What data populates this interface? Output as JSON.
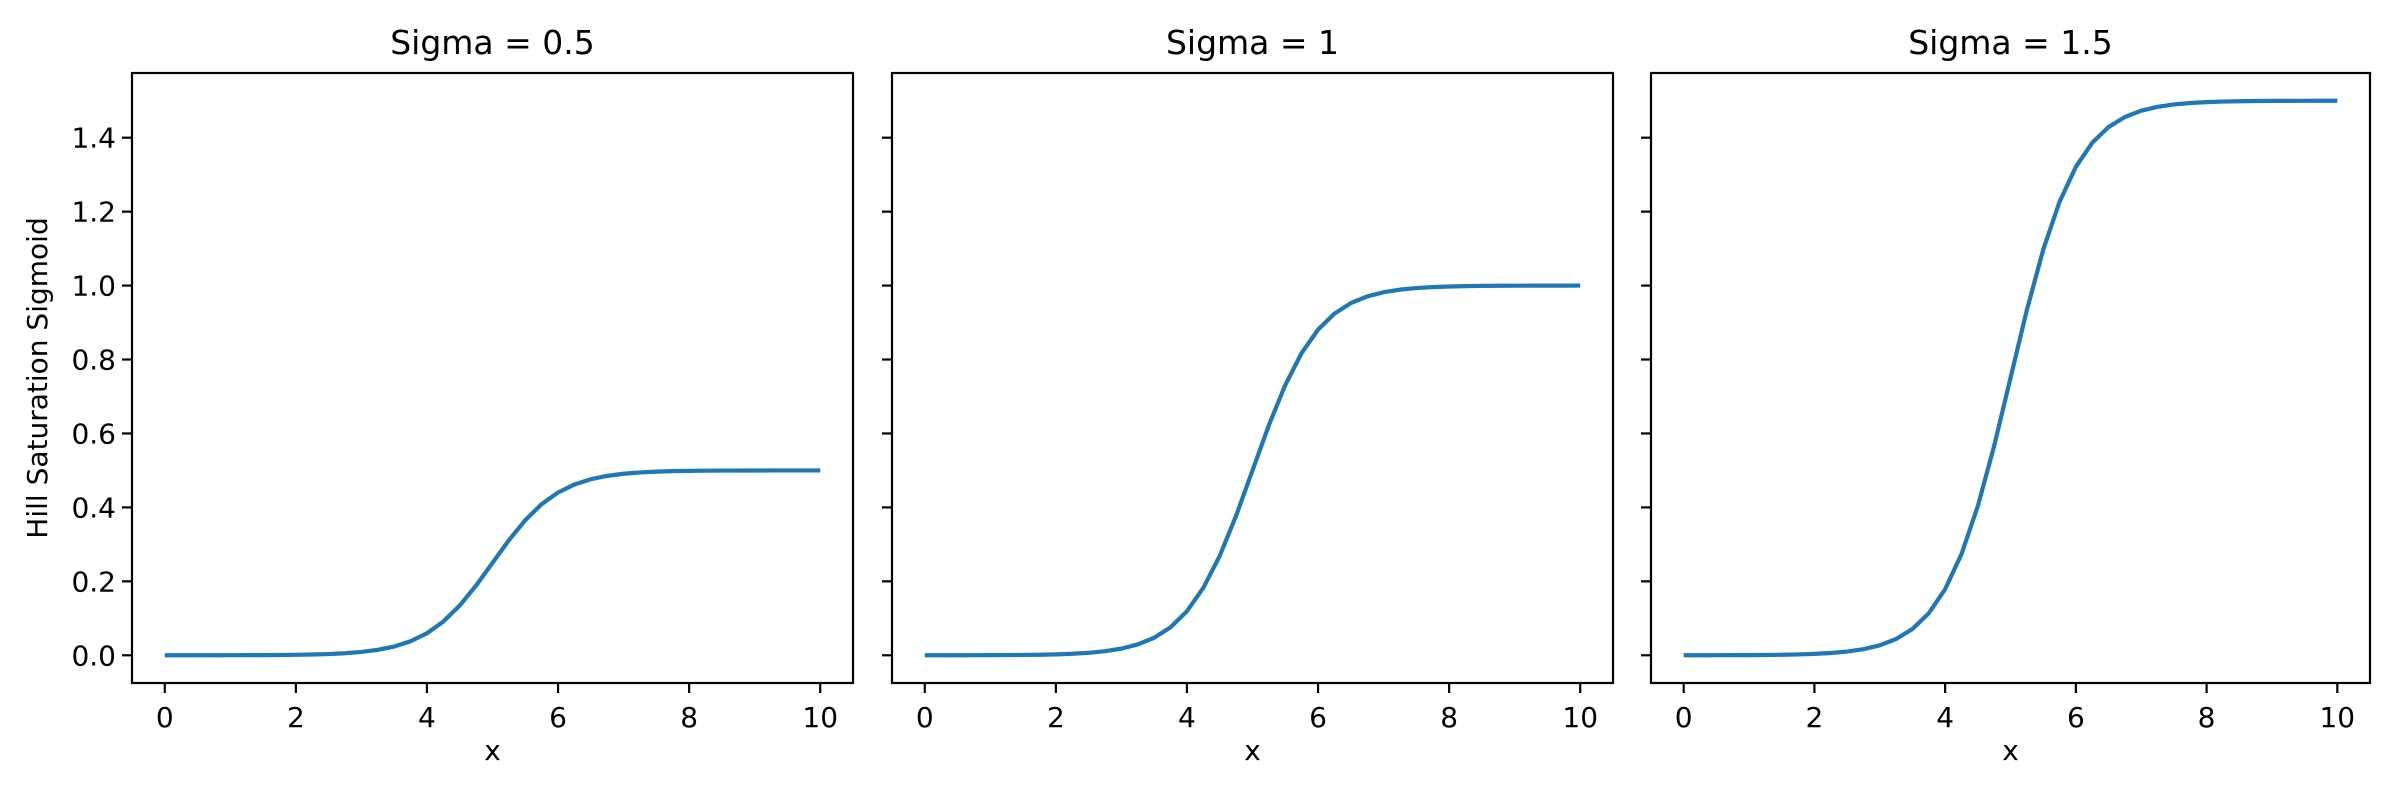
{
  "figure": {
    "background": "#ffffff",
    "text_color": "#000000",
    "spine_color": "#000000"
  },
  "chart_data": [
    {
      "type": "line",
      "title": "Sigma = 0.5",
      "xlabel": "x",
      "ylabel": "Hill Saturation Sigmoid",
      "sigma": 0.5,
      "line_color": "#1f77b4",
      "xlim": [
        -0.5,
        10.5
      ],
      "ylim": [
        -0.075,
        1.575
      ],
      "xticks": [
        0,
        2,
        4,
        6,
        8,
        10
      ],
      "xtick_labels": [
        "0",
        "2",
        "4",
        "6",
        "8",
        "10"
      ],
      "yticks": [
        0,
        0.2,
        0.4,
        0.6,
        0.8,
        1.0,
        1.2,
        1.4
      ],
      "ytick_labels": [
        "0.0",
        "0.2",
        "0.4",
        "0.6",
        "0.8",
        "1.0",
        "1.2",
        "1.4"
      ],
      "show_ytick_labels": true,
      "grid": false,
      "legend": null,
      "x": [
        0,
        0.25,
        0.5,
        0.75,
        1,
        1.25,
        1.5,
        1.75,
        2,
        2.25,
        2.5,
        2.75,
        3,
        3.25,
        3.5,
        3.75,
        4,
        4.25,
        4.5,
        4.75,
        5,
        5.25,
        5.5,
        5.75,
        6,
        6.25,
        6.5,
        6.75,
        7,
        7.25,
        7.5,
        7.75,
        8,
        8.25,
        8.5,
        8.75,
        9,
        9.25,
        9.5,
        9.75,
        10
      ],
      "y": [
        0.0,
        0.0,
        0.0001,
        0.0001,
        0.0002,
        0.0003,
        0.0005,
        0.0008,
        0.0012,
        0.002,
        0.0033,
        0.0055,
        0.009,
        0.0147,
        0.0237,
        0.0379,
        0.0596,
        0.0912,
        0.1345,
        0.1888,
        0.25,
        0.3112,
        0.3655,
        0.4088,
        0.4404,
        0.4621,
        0.4763,
        0.4853,
        0.491,
        0.4945,
        0.4967,
        0.498,
        0.4988,
        0.4993,
        0.4996,
        0.4997,
        0.4998,
        0.4999,
        0.4999,
        0.5,
        0.5
      ]
    },
    {
      "type": "line",
      "title": "Sigma = 1",
      "xlabel": "x",
      "ylabel": "",
      "sigma": 1,
      "line_color": "#1f77b4",
      "xlim": [
        -0.5,
        10.5
      ],
      "ylim": [
        -0.075,
        1.575
      ],
      "xticks": [
        0,
        2,
        4,
        6,
        8,
        10
      ],
      "xtick_labels": [
        "0",
        "2",
        "4",
        "6",
        "8",
        "10"
      ],
      "yticks": [
        0,
        0.2,
        0.4,
        0.6,
        0.8,
        1.0,
        1.2,
        1.4
      ],
      "ytick_labels": [
        "0.0",
        "0.2",
        "0.4",
        "0.6",
        "0.8",
        "1.0",
        "1.2",
        "1.4"
      ],
      "show_ytick_labels": false,
      "grid": false,
      "legend": null,
      "x": [
        0,
        0.25,
        0.5,
        0.75,
        1,
        1.25,
        1.5,
        1.75,
        2,
        2.25,
        2.5,
        2.75,
        3,
        3.25,
        3.5,
        3.75,
        4,
        4.25,
        4.5,
        4.75,
        5,
        5.25,
        5.5,
        5.75,
        6,
        6.25,
        6.5,
        6.75,
        7,
        7.25,
        7.5,
        7.75,
        8,
        8.25,
        8.5,
        8.75,
        9,
        9.25,
        9.5,
        9.75,
        10
      ],
      "y": [
        0.0,
        0.0001,
        0.0001,
        0.0002,
        0.0003,
        0.0006,
        0.0009,
        0.0015,
        0.0025,
        0.0041,
        0.0067,
        0.011,
        0.018,
        0.0293,
        0.0474,
        0.0759,
        0.1192,
        0.1824,
        0.2689,
        0.3775,
        0.5,
        0.6225,
        0.7311,
        0.8176,
        0.8808,
        0.9241,
        0.9526,
        0.9707,
        0.982,
        0.989,
        0.9933,
        0.9959,
        0.9975,
        0.9985,
        0.9991,
        0.9995,
        0.9997,
        0.9998,
        0.9999,
        0.9999,
        1.0
      ]
    },
    {
      "type": "line",
      "title": "Sigma = 1.5",
      "xlabel": "x",
      "ylabel": "",
      "sigma": 1.5,
      "line_color": "#1f77b4",
      "xlim": [
        -0.5,
        10.5
      ],
      "ylim": [
        -0.075,
        1.575
      ],
      "xticks": [
        0,
        2,
        4,
        6,
        8,
        10
      ],
      "xtick_labels": [
        "0",
        "2",
        "4",
        "6",
        "8",
        "10"
      ],
      "yticks": [
        0,
        0.2,
        0.4,
        0.6,
        0.8,
        1.0,
        1.2,
        1.4
      ],
      "ytick_labels": [
        "0.0",
        "0.2",
        "0.4",
        "0.6",
        "0.8",
        "1.0",
        "1.2",
        "1.4"
      ],
      "show_ytick_labels": false,
      "grid": false,
      "legend": null,
      "x": [
        0,
        0.25,
        0.5,
        0.75,
        1,
        1.25,
        1.5,
        1.75,
        2,
        2.25,
        2.5,
        2.75,
        3,
        3.25,
        3.5,
        3.75,
        4,
        4.25,
        4.5,
        4.75,
        5,
        5.25,
        5.5,
        5.75,
        6,
        6.25,
        6.5,
        6.75,
        7,
        7.25,
        7.5,
        7.75,
        8,
        8.25,
        8.5,
        8.75,
        9,
        9.25,
        9.5,
        9.75,
        10
      ],
      "y": [
        0.0001,
        0.0001,
        0.0002,
        0.0003,
        0.0005,
        0.0008,
        0.0014,
        0.0023,
        0.0037,
        0.0061,
        0.01,
        0.0165,
        0.027,
        0.044,
        0.0712,
        0.1138,
        0.1788,
        0.2736,
        0.4034,
        0.5663,
        0.75,
        0.9337,
        1.0966,
        1.2264,
        1.3212,
        1.3862,
        1.4288,
        1.456,
        1.473,
        1.4835,
        1.4899,
        1.4939,
        1.4963,
        1.4978,
        1.4986,
        1.4992,
        1.4995,
        1.4997,
        1.4998,
        1.4999,
        1.5
      ]
    }
  ]
}
